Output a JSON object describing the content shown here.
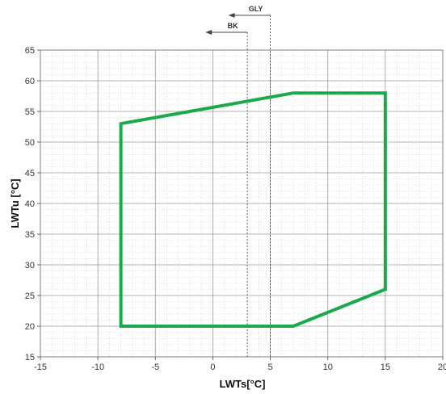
{
  "chart_data": {
    "type": "line",
    "xlabel": "LWTs[°C]",
    "ylabel": "LWTu [°C]",
    "xlim": [
      -15,
      20
    ],
    "ylim": [
      15,
      65
    ],
    "x_ticks": [
      -15,
      -10,
      -5,
      0,
      5,
      10,
      15,
      20
    ],
    "y_ticks": [
      15,
      20,
      25,
      30,
      35,
      40,
      45,
      50,
      55,
      60,
      65
    ],
    "grid": true,
    "minor_grid": "dotted",
    "series": [
      {
        "color": "#1aaa4a",
        "closed": true,
        "x": [
          -8,
          7,
          15,
          15,
          7,
          -8
        ],
        "y": [
          20,
          20,
          26,
          58,
          58,
          53
        ]
      }
    ],
    "annotations": [
      {
        "label": "GLY",
        "x": 5,
        "arrow": "left"
      },
      {
        "label": "BK",
        "x": 3,
        "arrow": "left"
      }
    ]
  }
}
